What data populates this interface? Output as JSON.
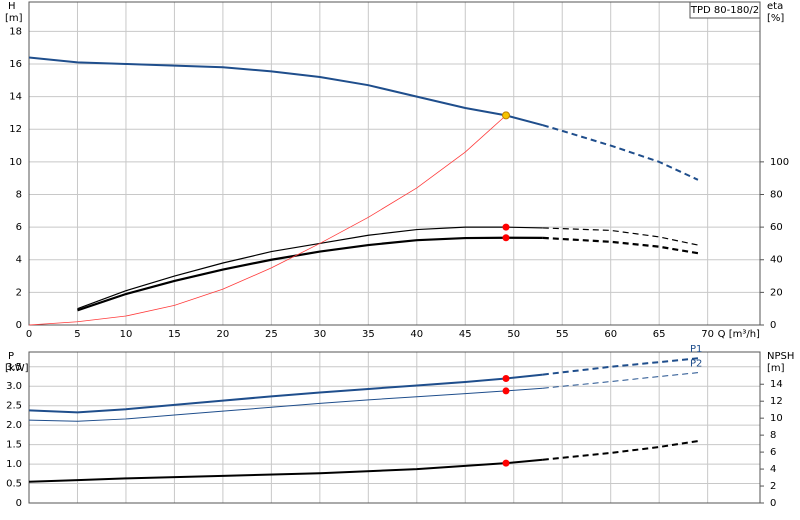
{
  "chart_data": [
    {
      "type": "line",
      "title": "TPD 80-180/2",
      "ylabel": "H",
      "yunit": "[m]",
      "y2label": "eta",
      "y2unit": "[%]",
      "xlabel": "Q [m³/h]",
      "xlim": [
        0,
        75.4
      ],
      "xticks": [
        0,
        5,
        10,
        15,
        20,
        25,
        30,
        35,
        40,
        45,
        50,
        55,
        60,
        65,
        70
      ],
      "xtick_labels": true,
      "ylim": [
        0,
        19.8
      ],
      "yticks": [
        0,
        2,
        4,
        6,
        8,
        10,
        12,
        14,
        16,
        18
      ],
      "y2lim": [
        0,
        198
      ],
      "y2ticks": [
        0,
        20,
        40,
        60,
        80,
        100
      ],
      "grid": true,
      "series": [
        {
          "color": "#1f4e8c",
          "line_style": "solid",
          "line_width": 2,
          "x": [
            0,
            5,
            10,
            15,
            20,
            25,
            30,
            35,
            40,
            45,
            49.2,
            53
          ],
          "values": [
            16.4,
            16.1,
            16.0,
            15.9,
            15.8,
            15.55,
            15.2,
            14.7,
            14.0,
            13.3,
            12.85,
            12.25
          ]
        },
        {
          "color": "#1f4e8c",
          "line_style": "dashed",
          "line_width": 2,
          "x": [
            53,
            55,
            60,
            65,
            69
          ],
          "values": [
            12.25,
            11.9,
            11.0,
            10.0,
            8.9
          ]
        },
        {
          "color": "#000000",
          "line_style": "solid",
          "line_width": 1.2,
          "axis": "y2",
          "x": [
            5,
            10,
            15,
            20,
            25,
            30,
            35,
            40,
            45,
            49.2,
            53
          ],
          "values": [
            10,
            21,
            30,
            38,
            45,
            50,
            55,
            58.5,
            60,
            60,
            59.5
          ]
        },
        {
          "color": "#000000",
          "line_style": "dashed",
          "line_width": 1.2,
          "axis": "y2",
          "x": [
            53,
            60,
            65,
            69
          ],
          "values": [
            59.5,
            58,
            54,
            49
          ]
        },
        {
          "color": "#000000",
          "line_style": "solid",
          "line_width": 2.2,
          "axis": "y2",
          "x": [
            5,
            10,
            15,
            20,
            25,
            30,
            35,
            40,
            45,
            49.2,
            53
          ],
          "values": [
            9,
            19,
            27,
            34,
            40,
            45,
            49,
            52,
            53.3,
            53.5,
            53.4
          ]
        },
        {
          "color": "#000000",
          "line_style": "dashed",
          "line_width": 2.2,
          "axis": "y2",
          "x": [
            53,
            60,
            65,
            69
          ],
          "values": [
            53.4,
            51,
            48,
            44
          ]
        },
        {
          "color": "#ff3b3b",
          "line_style": "solid",
          "line_width": 0.8,
          "x": [
            0,
            5,
            10,
            15,
            20,
            25,
            30,
            35,
            40,
            45,
            49.2
          ],
          "values": [
            0,
            0.2,
            0.55,
            1.2,
            2.2,
            3.5,
            5.0,
            6.6,
            8.4,
            10.6,
            12.85
          ]
        }
      ],
      "points": [
        {
          "x": 49.2,
          "y": 12.85,
          "color": "#f5c400"
        },
        {
          "x": 49.2,
          "y": 60,
          "axis": "y2",
          "color": "#ff0000"
        },
        {
          "x": 49.2,
          "y": 53.5,
          "axis": "y2",
          "color": "#ff0000"
        }
      ]
    },
    {
      "type": "line",
      "ylabel": "P",
      "yunit": "[kW]",
      "y2label": "NPSH",
      "y2unit": "[m]",
      "xlim": [
        0,
        75.4
      ],
      "xticks": [
        0,
        5,
        10,
        15,
        20,
        25,
        30,
        35,
        40,
        45,
        50,
        55,
        60,
        65,
        70
      ],
      "xtick_labels": false,
      "ylim": [
        0,
        3.88
      ],
      "yticks": [
        0,
        0.5,
        {
          "value": 1,
          "label": "1.0"
        },
        1.5,
        {
          "value": 2,
          "label": "2.0"
        },
        2.5,
        {
          "value": 3,
          "label": "3.0"
        },
        3.5
      ],
      "y2lim": [
        0,
        17.8
      ],
      "y2ticks": [
        0,
        2,
        4,
        6,
        8,
        10,
        12,
        14
      ],
      "grid": true,
      "series": [
        {
          "color": "#1f4e8c",
          "line_style": "solid",
          "line_width": 2,
          "x": [
            0,
            5,
            10,
            15,
            20,
            25,
            30,
            35,
            40,
            45,
            49.2,
            53
          ],
          "values": [
            2.38,
            2.33,
            2.41,
            2.52,
            2.63,
            2.74,
            2.84,
            2.93,
            3.02,
            3.11,
            3.2,
            3.3
          ]
        },
        {
          "name": "P1",
          "color": "#1f4e8c",
          "line_style": "dashed",
          "line_width": 2,
          "x": [
            53,
            60,
            65,
            69
          ],
          "values": [
            3.3,
            3.5,
            3.62,
            3.72
          ]
        },
        {
          "color": "#1f4e8c",
          "line_style": "solid",
          "line_width": 1,
          "x": [
            0,
            5,
            10,
            15,
            20,
            25,
            30,
            35,
            40,
            45,
            49.2,
            53
          ],
          "values": [
            2.13,
            2.1,
            2.16,
            2.26,
            2.36,
            2.46,
            2.56,
            2.65,
            2.73,
            2.81,
            2.88,
            2.95
          ]
        },
        {
          "name": "P2",
          "color": "#1f4e8c",
          "line_style": "dashed",
          "line_width": 1,
          "x": [
            53,
            60,
            65,
            69
          ],
          "values": [
            2.95,
            3.12,
            3.25,
            3.35
          ]
        },
        {
          "color": "#000000",
          "line_style": "solid",
          "line_width": 2,
          "axis": "y2",
          "x": [
            0,
            5,
            10,
            20,
            30,
            40,
            49.2,
            53
          ],
          "values": [
            2.5,
            2.7,
            2.9,
            3.2,
            3.5,
            4.0,
            4.7,
            5.1
          ]
        },
        {
          "color": "#000000",
          "line_style": "dashed",
          "line_width": 2,
          "axis": "y2",
          "x": [
            53,
            60,
            65,
            69
          ],
          "values": [
            5.1,
            5.9,
            6.6,
            7.3
          ]
        }
      ],
      "points": [
        {
          "x": 49.2,
          "y": 3.2,
          "color": "#ff0000"
        },
        {
          "x": 49.2,
          "y": 2.88,
          "color": "#ff0000"
        },
        {
          "x": 49.2,
          "y": 4.7,
          "axis": "y2",
          "color": "#ff0000"
        }
      ]
    }
  ]
}
